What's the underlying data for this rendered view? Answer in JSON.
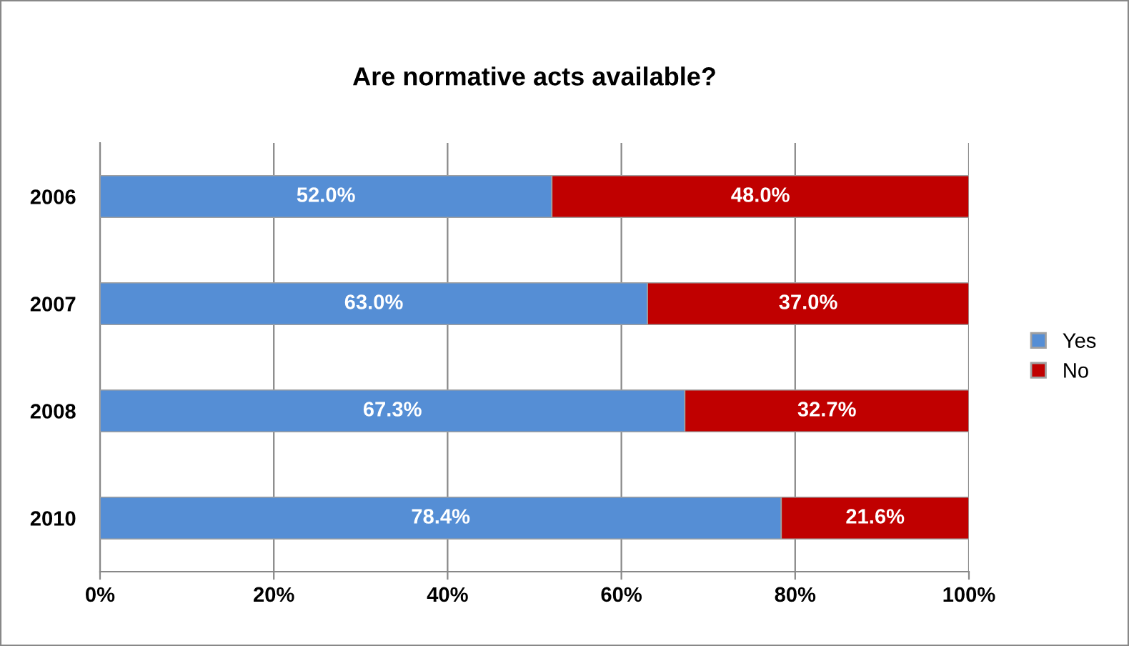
{
  "chart_data": {
    "type": "bar",
    "orientation": "horizontal",
    "stacked": true,
    "title": "Are normative acts available?",
    "categories": [
      "2006",
      "2007",
      "2008",
      "2010"
    ],
    "series": [
      {
        "name": "Yes",
        "color": "#558ed5",
        "values": [
          52.0,
          63.0,
          67.3,
          78.4
        ],
        "value_labels": [
          "52.0%",
          "63.0%",
          "67.3%",
          "78.4%"
        ]
      },
      {
        "name": "No",
        "color": "#c00000",
        "values": [
          48.0,
          37.0,
          32.7,
          21.6
        ],
        "value_labels": [
          "48.0%",
          "37.0%",
          "32.7%",
          "21.6%"
        ]
      }
    ],
    "xlim": [
      0,
      100
    ],
    "xticks": [
      {
        "value": 0,
        "label": "0%"
      },
      {
        "value": 20,
        "label": "20%"
      },
      {
        "value": 40,
        "label": "40%"
      },
      {
        "value": 60,
        "label": "60%"
      },
      {
        "value": 80,
        "label": "80%"
      },
      {
        "value": 100,
        "label": "100%"
      }
    ],
    "grid": "x",
    "legend": "right"
  }
}
